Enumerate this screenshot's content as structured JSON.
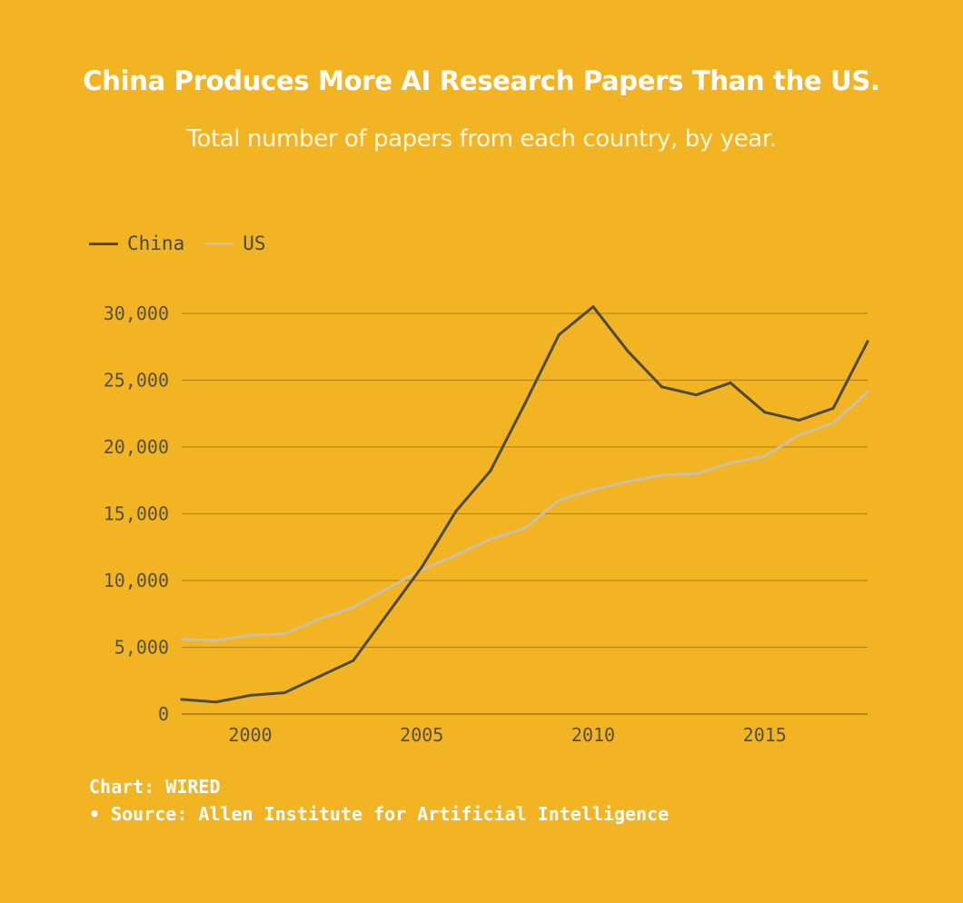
{
  "colors": {
    "background": "#F3B423",
    "china": "#4B4B38",
    "us": "#C9C0A6",
    "grid": "#B7871A",
    "axis": "#9C7418"
  },
  "chart_data": {
    "type": "line",
    "title": "China Produces More AI Research Papers Than the US.",
    "subtitle": "Total number of papers from each country, by year.",
    "xlabel": "",
    "ylabel": "",
    "xlim": [
      1998,
      2018
    ],
    "ylim": [
      0,
      30000
    ],
    "x": [
      1998,
      1999,
      2000,
      2001,
      2002,
      2003,
      2004,
      2005,
      2006,
      2007,
      2008,
      2009,
      2010,
      2011,
      2012,
      2013,
      2014,
      2015,
      2016,
      2017,
      2018
    ],
    "x_ticks": [
      {
        "value": 2000,
        "label": "2000"
      },
      {
        "value": 2005,
        "label": "2005"
      },
      {
        "value": 2010,
        "label": "2010"
      },
      {
        "value": 2015,
        "label": "2015"
      }
    ],
    "y_ticks": [
      {
        "value": 0,
        "label": "0"
      },
      {
        "value": 5000,
        "label": "5,000"
      },
      {
        "value": 10000,
        "label": "10,000"
      },
      {
        "value": 15000,
        "label": "15,000"
      },
      {
        "value": 20000,
        "label": "20,000"
      },
      {
        "value": 25000,
        "label": "25,000"
      },
      {
        "value": 30000,
        "label": "30,000"
      }
    ],
    "grid": true,
    "legend_position": "top-left",
    "series": [
      {
        "name": "China",
        "key": "china",
        "values": [
          1100,
          900,
          1400,
          1600,
          2800,
          4000,
          7500,
          11000,
          15200,
          18200,
          23200,
          28400,
          30500,
          27200,
          24500,
          23900,
          24800,
          22600,
          22000,
          22900,
          27900
        ]
      },
      {
        "name": "US",
        "key": "us",
        "values": [
          5600,
          5500,
          5900,
          6000,
          7100,
          8000,
          9400,
          10800,
          11900,
          13100,
          13900,
          16000,
          16800,
          17400,
          17900,
          18000,
          18800,
          19300,
          20900,
          21800,
          24100
        ]
      }
    ]
  },
  "footer": {
    "credit": "Chart: WIRED",
    "source": "• Source: Allen Institute for Artificial Intelligence"
  }
}
